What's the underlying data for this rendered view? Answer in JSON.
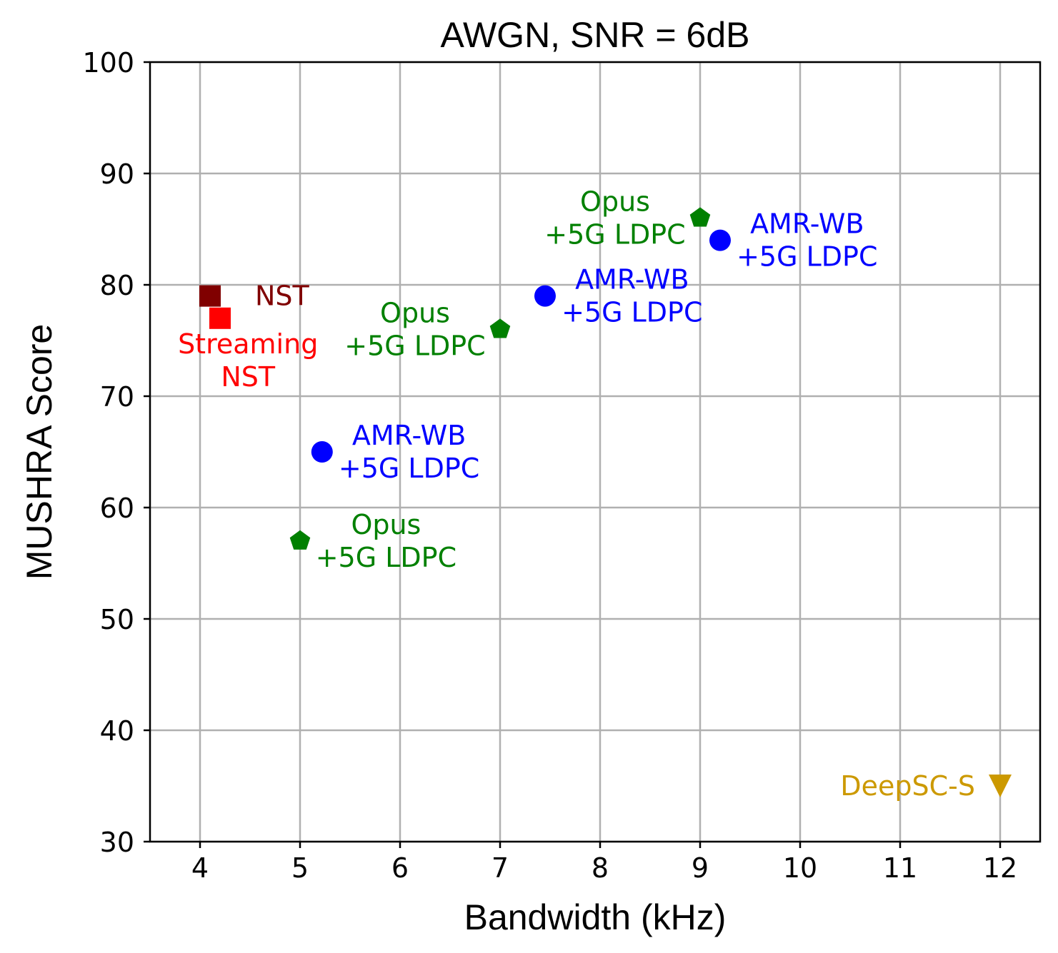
{
  "chart_data": {
    "type": "scatter",
    "title": "AWGN, SNR = 6dB",
    "xlabel": "Bandwidth (kHz)",
    "ylabel": "MUSHRA Score",
    "xlim": [
      3.5,
      12.4
    ],
    "ylim": [
      30,
      100
    ],
    "xticks": [
      4,
      5,
      6,
      7,
      8,
      9,
      10,
      11,
      12
    ],
    "yticks": [
      30,
      40,
      50,
      60,
      70,
      80,
      90,
      100
    ],
    "grid": true,
    "points": [
      {
        "name": "nst",
        "x": 4.1,
        "y": 79,
        "marker": "square",
        "color": "#800000",
        "label": [
          "NST"
        ],
        "label_anchor": "start",
        "label_dx": 0.45,
        "label_dy": 0
      },
      {
        "name": "streaming-nst",
        "x": 4.2,
        "y": 77,
        "marker": "square",
        "color": "#ff0000",
        "label": [
          "Streaming",
          "NST"
        ],
        "label_anchor": "middle",
        "label_dx": 0.28,
        "label_dy": -3.8
      },
      {
        "name": "amr-wb-5-2",
        "x": 5.22,
        "y": 65,
        "marker": "circle",
        "color": "#0000ff",
        "label": [
          "AMR-WB",
          "+5G LDPC"
        ],
        "label_anchor": "middle",
        "label_dx": 0.87,
        "label_dy": 0
      },
      {
        "name": "opus-5",
        "x": 5.0,
        "y": 57,
        "marker": "pentagon",
        "color": "#008000",
        "label": [
          "Opus",
          "+5G LDPC"
        ],
        "label_anchor": "middle",
        "label_dx": 0.86,
        "label_dy": 0
      },
      {
        "name": "opus-7",
        "x": 7.0,
        "y": 76,
        "marker": "pentagon",
        "color": "#008000",
        "label": [
          "Opus",
          "+5G LDPC"
        ],
        "label_anchor": "middle",
        "label_dx": -0.85,
        "label_dy": 0
      },
      {
        "name": "amr-wb-7-45",
        "x": 7.45,
        "y": 79,
        "marker": "circle",
        "color": "#0000ff",
        "label": [
          "AMR-WB",
          "+5G LDPC"
        ],
        "label_anchor": "middle",
        "label_dx": 0.87,
        "label_dy": 0
      },
      {
        "name": "opus-9",
        "x": 9.0,
        "y": 86,
        "marker": "pentagon",
        "color": "#008000",
        "label": [
          "Opus",
          "+5G LDPC"
        ],
        "label_anchor": "middle",
        "label_dx": -0.85,
        "label_dy": 0
      },
      {
        "name": "amr-wb-9-2",
        "x": 9.2,
        "y": 84,
        "marker": "circle",
        "color": "#0000ff",
        "label": [
          "AMR-WB",
          "+5G LDPC"
        ],
        "label_anchor": "middle",
        "label_dx": 0.87,
        "label_dy": 0
      },
      {
        "name": "deepsc-s",
        "x": 12.0,
        "y": 35,
        "marker": "triangle-down",
        "color": "#cc9900",
        "label": [
          "DeepSC-S"
        ],
        "label_anchor": "end",
        "label_dx": -0.25,
        "label_dy": 0
      }
    ]
  }
}
